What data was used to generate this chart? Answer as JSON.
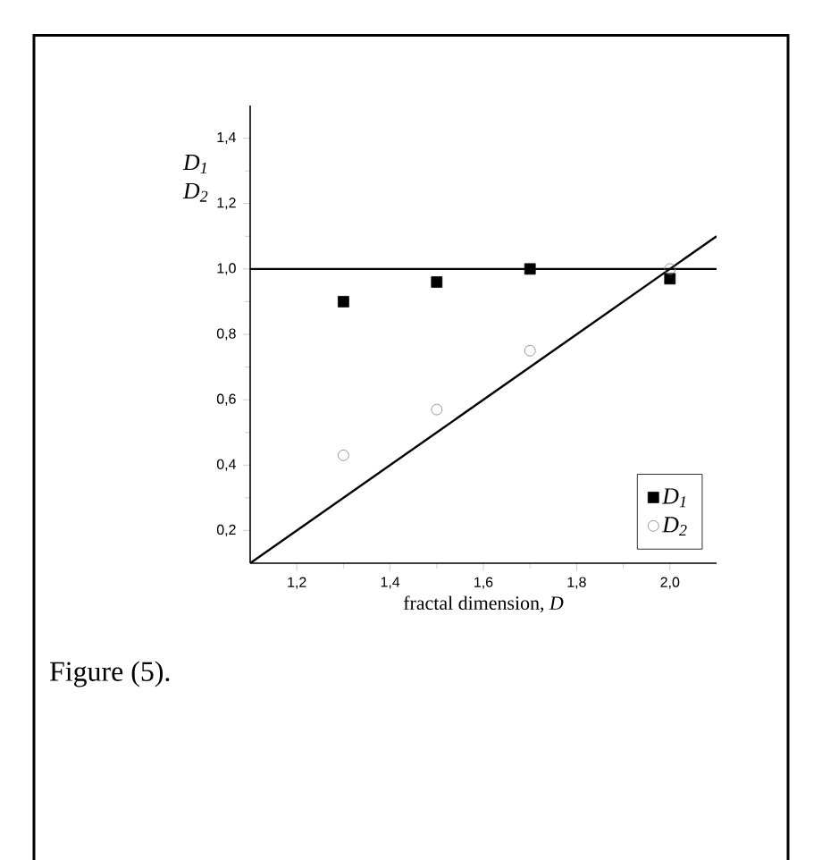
{
  "chart_data": {
    "type": "scatter",
    "xlabel": "fractal dimension, *D*",
    "ylabel": "D$_{1}$ D$_{2}$",
    "annotations": [
      "Figure (5)."
    ],
    "xlim": [
      1.1,
      2.1
    ],
    "ylim": [
      0.1,
      1.5
    ],
    "xticks": [
      {
        "value": 1.2,
        "label": "1,2"
      },
      {
        "value": 1.4,
        "label": "1,4"
      },
      {
        "value": 1.6,
        "label": "1,6"
      },
      {
        "value": 1.8,
        "label": "1,8"
      },
      {
        "value": 2.0,
        "label": "2,0"
      }
    ],
    "yticks": [
      {
        "value": 0.2,
        "label": "0,2"
      },
      {
        "value": 0.4,
        "label": "0,4"
      },
      {
        "value": 0.6,
        "label": "0,6"
      },
      {
        "value": 0.8,
        "label": "0,8"
      },
      {
        "value": 1.0,
        "label": "1,0"
      },
      {
        "value": 1.2,
        "label": "1,2"
      },
      {
        "value": 1.4,
        "label": "1,4"
      }
    ],
    "legend": "bottom right",
    "grid": false,
    "ref_lines": [
      {
        "axis": "y",
        "value": 1.0,
        "color": "#000000"
      }
    ],
    "series": [
      {
        "name": "D$_{1}$",
        "color": "#000000",
        "marker": "square",
        "x": [
          1.3,
          1.5,
          1.7,
          2.0
        ],
        "values": [
          0.9,
          0.96,
          1.0,
          0.97
        ]
      },
      {
        "name": "D$_{2}$",
        "color": "#808080",
        "marker": "circle",
        "x": [
          1.3,
          1.5,
          1.7,
          2.0
        ],
        "values": [
          0.43,
          0.57,
          0.75,
          1.0
        ]
      },
      {
        "type": "line",
        "color": "#000000",
        "marker": "none",
        "x": [
          1.1,
          1.5,
          1.8,
          2.1
        ],
        "values": [
          0.1,
          0.5,
          0.8,
          1.1
        ]
      }
    ]
  }
}
